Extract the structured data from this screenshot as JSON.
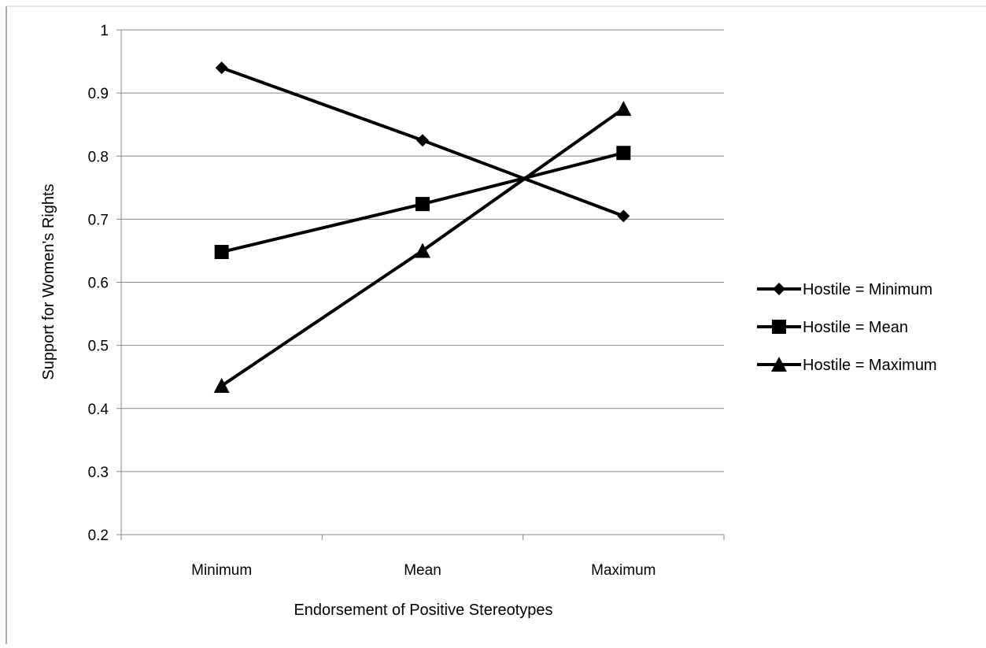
{
  "chart_data": {
    "type": "line",
    "title": "",
    "xlabel": "Endorsement of Positive Stereotypes",
    "ylabel": "Support for Women's Rights",
    "categories": [
      "Minimum",
      "Mean",
      "Maximum"
    ],
    "ylim": [
      0.2,
      1
    ],
    "yticks": [
      "0.2",
      "0.3",
      "0.4",
      "0.5",
      "0.6",
      "0.7",
      "0.8",
      "0.9",
      "1"
    ],
    "grid": true,
    "legend_position": "right",
    "series": [
      {
        "name": "Hostile = Minimum",
        "marker": "diamond",
        "values": [
          0.94,
          0.825,
          0.705
        ]
      },
      {
        "name": "Hostile = Mean",
        "marker": "square",
        "values": [
          0.648,
          0.724,
          0.805
        ]
      },
      {
        "name": "Hostile = Maximum",
        "marker": "triangle",
        "values": [
          0.436,
          0.65,
          0.875
        ]
      }
    ],
    "colors": {
      "line": "#000000",
      "grid": "#888888",
      "axis": "#888888",
      "frame": "#aaaaaa"
    }
  }
}
